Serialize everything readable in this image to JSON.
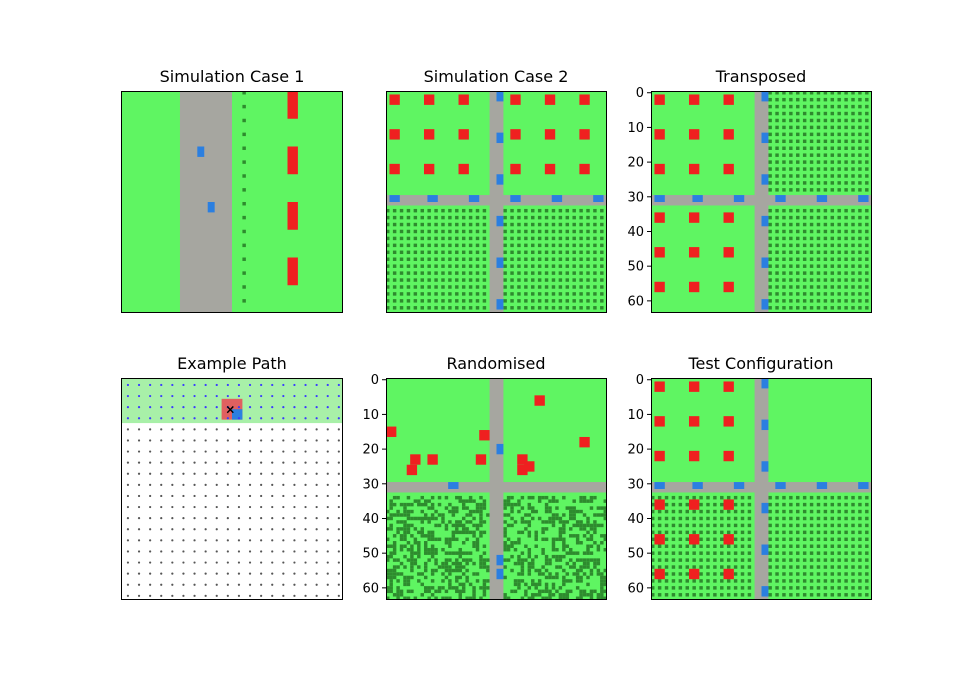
{
  "figure": {
    "grid_size": 64,
    "colors": {
      "grass": "#5ff562",
      "road": "#a6a6a0",
      "house": "#ef2020",
      "vehicle": "#2b7fe0",
      "crop": "#3fa83f",
      "crop_dark": "#2e8b2e",
      "path_fill": "#a8f0a8",
      "path_dot": "#3a3aff",
      "grid_dot": "#555555",
      "marker": "#e06060"
    }
  },
  "panels": [
    {
      "id": "case1",
      "title": "Simulation Case 1",
      "axes": false
    },
    {
      "id": "case2",
      "title": "Simulation Case 2",
      "axes": false
    },
    {
      "id": "transposed",
      "title": "Transposed",
      "axes": true,
      "yticks": [
        "0",
        "10",
        "20",
        "30",
        "40",
        "50",
        "60"
      ]
    },
    {
      "id": "path",
      "title": "Example Path",
      "axes": false,
      "marker": "×"
    },
    {
      "id": "random",
      "title": "Randomised",
      "axes": true,
      "yticks": [
        "0",
        "10",
        "20",
        "30",
        "40",
        "50",
        "60"
      ]
    },
    {
      "id": "test",
      "title": "Test Configuration",
      "axes": true,
      "yticks": [
        "0",
        "10",
        "20",
        "30",
        "40",
        "50",
        "60"
      ]
    }
  ]
}
